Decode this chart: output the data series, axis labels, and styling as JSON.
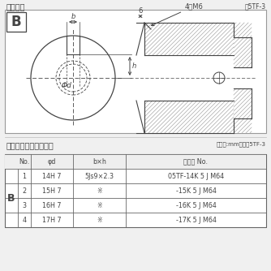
{
  "title_text": "軸穴形状",
  "fig_label": "図5TF-3",
  "table_title": "軸穴形状コード一覧表",
  "table_unit": "（単位:mm）　表5TF-3",
  "B_label": "B",
  "diagram_b_label": "B",
  "bg_color": "#f0f0f0",
  "line_color": "#444444",
  "dim_label_6": "6",
  "dim_label_4M6": "4－M6",
  "dim_label_b": "b",
  "dim_label_h": "h",
  "dim_label_phid": "Φd",
  "table_headers": [
    "No.",
    "φd",
    "b×h",
    "コード No."
  ],
  "table_rows": [
    [
      "1",
      "14H 7",
      "5Js9×2.3",
      "05TF-14K 5 J M64"
    ],
    [
      "2",
      "15H 7",
      "※",
      "-15K 5 J M64"
    ],
    [
      "3",
      "16H 7",
      "※",
      "-16K 5 J M64"
    ],
    [
      "4",
      "17H 7",
      "※",
      "-17K 5 J M64"
    ]
  ],
  "font_size_title": 7.0,
  "font_size_fig": 5.5,
  "font_size_table": 5.8,
  "font_size_diagram": 6.0
}
